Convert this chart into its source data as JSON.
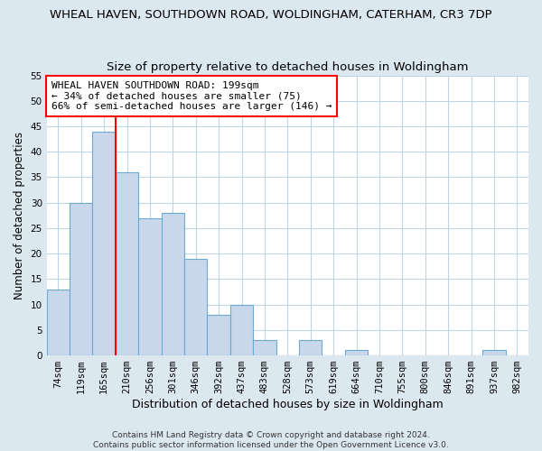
{
  "title": "WHEAL HAVEN, SOUTHDOWN ROAD, WOLDINGHAM, CATERHAM, CR3 7DP",
  "subtitle": "Size of property relative to detached houses in Woldingham",
  "xlabel": "Distribution of detached houses by size in Woldingham",
  "ylabel": "Number of detached properties",
  "bin_labels": [
    "74sqm",
    "119sqm",
    "165sqm",
    "210sqm",
    "256sqm",
    "301sqm",
    "346sqm",
    "392sqm",
    "437sqm",
    "483sqm",
    "528sqm",
    "573sqm",
    "619sqm",
    "664sqm",
    "710sqm",
    "755sqm",
    "800sqm",
    "846sqm",
    "891sqm",
    "937sqm",
    "982sqm"
  ],
  "bar_values": [
    13,
    30,
    44,
    36,
    27,
    28,
    19,
    8,
    10,
    3,
    0,
    3,
    0,
    1,
    0,
    0,
    0,
    0,
    0,
    1,
    0
  ],
  "bar_color": "#c8d8ea",
  "bar_edge_color": "#6aaad4",
  "vline_color": "red",
  "vline_position": 2.5,
  "ylim": [
    0,
    55
  ],
  "yticks": [
    0,
    5,
    10,
    15,
    20,
    25,
    30,
    35,
    40,
    45,
    50,
    55
  ],
  "annotation_lines": [
    "WHEAL HAVEN SOUTHDOWN ROAD: 199sqm",
    "← 34% of detached houses are smaller (75)",
    "66% of semi-detached houses are larger (146) →"
  ],
  "footer_line1": "Contains HM Land Registry data © Crown copyright and database right 2024.",
  "footer_line2": "Contains public sector information licensed under the Open Government Licence v3.0.",
  "bg_color": "#dce8f0",
  "plot_bg_color": "#ffffff",
  "grid_color": "#c0d4e4",
  "title_fontsize": 9.5,
  "subtitle_fontsize": 9.5,
  "annotation_fontsize": 8,
  "ylabel_fontsize": 8.5,
  "xlabel_fontsize": 9,
  "tick_fontsize": 7.5,
  "footer_fontsize": 6.5
}
